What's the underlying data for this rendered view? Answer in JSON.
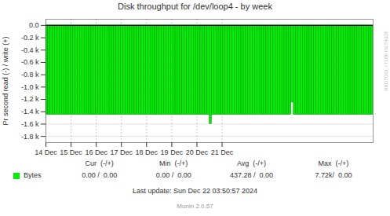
{
  "chart_data": {
    "type": "bar",
    "title": "Disk throughput for /dev/loop4 - by week",
    "ylabel": "Pr second read (-) / write (+)",
    "bins": [
      1733788800,
      1733796600,
      1733804400,
      1733812200,
      1733820000,
      1733827800,
      1733835600,
      1733843400,
      1733851200,
      1733859000,
      1733866800,
      1733874600,
      1733882400,
      1733890200,
      1733898000,
      1733905800,
      1733913600,
      1733921400,
      1733929200,
      1733937000,
      1733944800,
      1733952600,
      1733960400,
      1733968200,
      1733976000,
      1733983800,
      1733991600,
      1733999400,
      1734007200,
      1734015000,
      1734022800,
      1734030600,
      1734038400,
      1734046200,
      1734054000,
      1734061800,
      1734069600,
      1734077400,
      1734085200,
      1734093000,
      1734100800,
      1734108600,
      1734116400,
      1734124200,
      1734132000,
      1734139800,
      1734147600,
      1734155400,
      1734163200,
      1734171000,
      1734178800,
      1734186600,
      1734194400,
      1734202200,
      1734210000,
      1734217800,
      1734225600,
      1734233400,
      1734241200,
      1734249000,
      1734256800,
      1734264600,
      1734272400,
      1734280200,
      1734288000,
      1734295800,
      1734303600,
      1734311400,
      1734319200,
      1734327000,
      1734334800,
      1734342600,
      1734350400,
      1734358200,
      1734366000,
      1734373800,
      1734381600,
      1734389400,
      1734397200,
      1734405000,
      1734412800,
      1734420600,
      1734428400,
      1734436200,
      1734444000,
      1734451800,
      1734459600,
      1734467400,
      1734475200,
      1734483000,
      1734490800,
      1734498600,
      1734506400,
      1734514200,
      1734522000,
      1734529800,
      1734537600,
      1734545400,
      1734553200,
      1734561000,
      1734568800,
      1734576600,
      1734584400,
      1734592200,
      1734600000,
      1734607800,
      1734615600,
      1734623400,
      1734631200,
      1734639000,
      1734646800,
      1734654600,
      1734662400,
      1734670200,
      1734678000,
      1734685800,
      1734693600,
      1734701400,
      1734709200,
      1734717000,
      1734724800,
      1734732600,
      1734740400,
      1734748200,
      1734756000,
      1734763800,
      1734771600,
      1734779400,
      1734787200,
      1734795000,
      1734802800,
      1734810600,
      1734818400,
      1734826200,
      1734834000,
      1734841800,
      1734849600,
      1734857400,
      1734865200,
      1734873000,
      1734880800,
      1734888600,
      1734896400,
      1734904200,
      1734912000
    ],
    "series": [
      {
        "name": "Bytes",
        "color": "#00EE00",
        "values": [
          -1450,
          -1450,
          -1450,
          -1450,
          -1450,
          -1450,
          -1450,
          -1450,
          -1450,
          -1450,
          -1450,
          -1450,
          -1450,
          -1450,
          -1450,
          -1450,
          -1450,
          -1450,
          -1450,
          -1450,
          -1450,
          -1450,
          -1450,
          -1450,
          -1450,
          -1450,
          -1450,
          -1450,
          -1450,
          -1450,
          -1450,
          -1450,
          -1450,
          -1450,
          -1450,
          -1450,
          -1450,
          -1450,
          -1450,
          -1450,
          -1450,
          -1450,
          -1450,
          -1450,
          -1450,
          -1450,
          -1450,
          -1450,
          -1450,
          -1450,
          -1450,
          -1450,
          -1450,
          -1450,
          -1450,
          -1450,
          -1450,
          -1450,
          -1450,
          -1450,
          -1450,
          -1450,
          -1450,
          -1450,
          -1450,
          -1450,
          -1450,
          -1450,
          -1450,
          -1450,
          -1450,
          -1450,
          -1600,
          -1450,
          -1450,
          -1450,
          -1450,
          -1450,
          -1450,
          -1450,
          -1450,
          -1450,
          -1450,
          -1450,
          -1450,
          -1450,
          -1450,
          -1450,
          -1450,
          -1450,
          -1450,
          -1450,
          -1450,
          -1450,
          -1450,
          -1450,
          -1450,
          -1450,
          -1450,
          -1450,
          -1450,
          -1450,
          -1450,
          -1450,
          -1450,
          -1450,
          -1450,
          -1450,
          -1250,
          -1450,
          -1450,
          -1450,
          -1450,
          -1450,
          -1450,
          -1450,
          -1450,
          -1450,
          -1450,
          -1450,
          -1450,
          -1450,
          -1450,
          -1450,
          -1450,
          -1450,
          -1450,
          -1450,
          -1450,
          -1450,
          -1450,
          -1450,
          -1450,
          -1450,
          -1450,
          -1450,
          -1450,
          -1450,
          -1450,
          -1450,
          -1450,
          -1450,
          -1450,
          -1450
        ]
      }
    ],
    "xlim": [
      1733788800,
      1734912000
    ],
    "xticks": [
      {
        "value": 1733788800,
        "label": "14 Dec"
      },
      {
        "value": 1733875200,
        "label": "15 Dec"
      },
      {
        "value": 1733961600,
        "label": "16 Dec"
      },
      {
        "value": 1734048000,
        "label": "17 Dec"
      },
      {
        "value": 1734134400,
        "label": "18 Dec"
      },
      {
        "value": 1734220800,
        "label": "19 Dec"
      },
      {
        "value": 1734307200,
        "label": "20 Dec"
      },
      {
        "value": 1734393600,
        "label": "21 Dec"
      }
    ],
    "ylim": [
      -1900,
      100
    ],
    "yticks": [
      {
        "value": 0,
        "label": "0.0"
      },
      {
        "value": -200,
        "label": "-0.2 k"
      },
      {
        "value": -400,
        "label": "-0.4 k"
      },
      {
        "value": -600,
        "label": "-0.6 k"
      },
      {
        "value": -800,
        "label": "-0.8 k"
      },
      {
        "value": -1000,
        "label": "-1.0 k"
      },
      {
        "value": -1200,
        "label": "-1.2 k"
      },
      {
        "value": -1400,
        "label": "-1.4 k"
      },
      {
        "value": -1600,
        "label": "-1.6 k"
      },
      {
        "value": -1800,
        "label": "-1.8 k"
      }
    ],
    "grid": true,
    "legend": "bottom",
    "footer_columns": [
      "Cur  (-/+)",
      "Min  (-/+)",
      "Avg  (-/+)",
      "Max  (-/+)"
    ],
    "footer_values": [
      "0.00 /  0.00",
      "0.00 /  0.00",
      "437.28 /  0.00",
      "7.72k/  0.00"
    ],
    "footer_notes": [
      "Last update: Sun Dec 22 03:50:57 2024",
      "Munin 2.0.57"
    ],
    "watermark": "RRDTOOL / TOBI OETIKER"
  }
}
